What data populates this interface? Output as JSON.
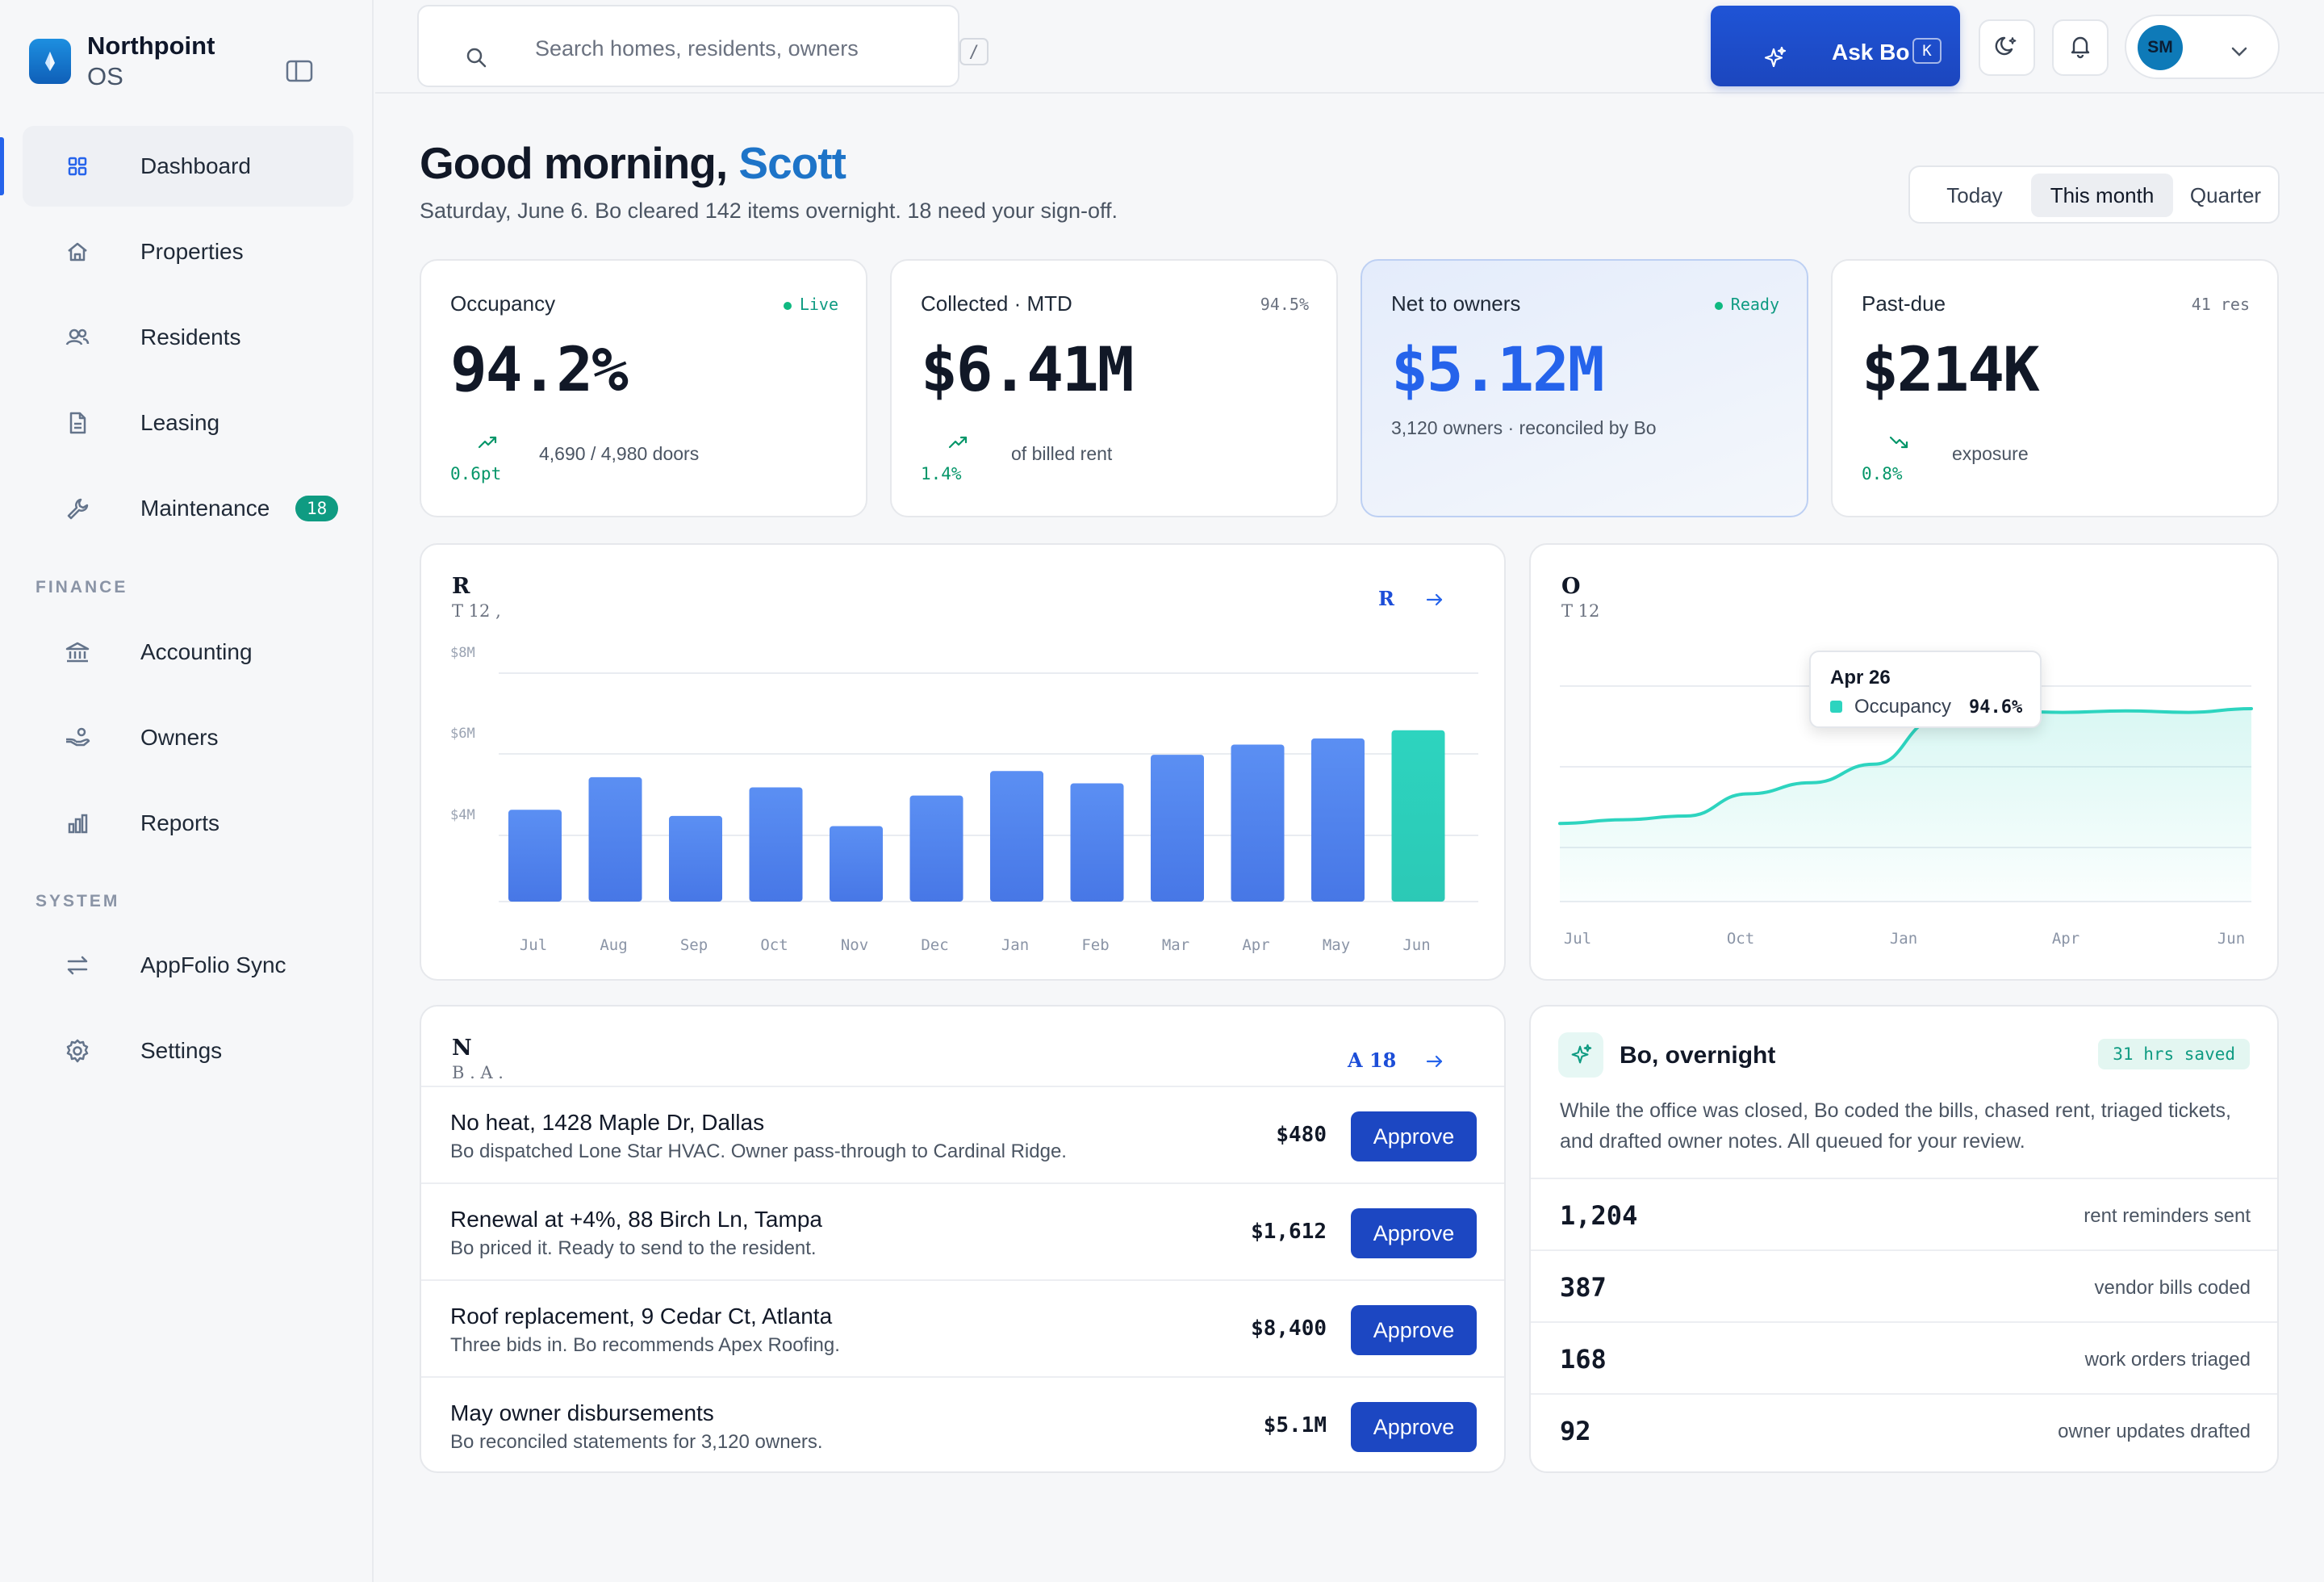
{
  "brand": {
    "name": "Northpoint",
    "sub": "OS"
  },
  "nav": {
    "items": [
      {
        "label": "Dashboard",
        "icon": "grid-icon",
        "active": true
      },
      {
        "label": "Properties",
        "icon": "home-icon"
      },
      {
        "label": "Residents",
        "icon": "users-icon"
      },
      {
        "label": "Leasing",
        "icon": "document-icon"
      },
      {
        "label": "Maintenance",
        "icon": "wrench-icon",
        "badge": "18"
      }
    ],
    "finance_label": "FINANCE",
    "finance": [
      {
        "label": "Accounting",
        "icon": "bank-icon"
      },
      {
        "label": "Owners",
        "icon": "hand-coins-icon"
      },
      {
        "label": "Reports",
        "icon": "bar-chart-icon"
      }
    ],
    "system_label": "SYSTEM",
    "system": [
      {
        "label": "AppFolio Sync",
        "icon": "sync-arrows-icon"
      },
      {
        "label": "Settings",
        "icon": "gear-icon"
      }
    ]
  },
  "topbar": {
    "search_placeholder": "Search homes, residents, owners",
    "search_kbd": "/",
    "ask_label": "Ask Bo",
    "ask_kbd": "K",
    "user_initials": "SM"
  },
  "greeting": {
    "prefix": "Good morning, ",
    "name": "Scott",
    "subtitle": "Saturday, June 6. Bo cleared 142 items overnight. 18 need your sign-off."
  },
  "range": {
    "options": [
      "Today",
      "This month",
      "Quarter"
    ],
    "selected": "This month"
  },
  "kpis": [
    {
      "title": "Occupancy",
      "value": "94.2%",
      "tag": "Live",
      "delta": "0.6pt",
      "sub": "4,690 / 4,980 doors",
      "trend": "up"
    },
    {
      "title": "Collected · MTD",
      "value": "$6.41M",
      "tag": "94.5%",
      "delta": "1.4%",
      "sub": "of billed rent",
      "trend": "up"
    },
    {
      "title": "Net to owners",
      "value": "$5.12M",
      "tag": "Ready",
      "note": "3,120 owners · reconciled by Bo"
    },
    {
      "title": "Past-due",
      "value": "$214K",
      "tag": "41 res",
      "delta": "0.8%",
      "sub": "exposure",
      "trend": "down"
    }
  ],
  "revenue_card": {
    "title": "R",
    "subtitle": "T  12  ,",
    "link": "R"
  },
  "occupancy_card": {
    "title": "O",
    "subtitle": "T  12"
  },
  "tooltip": {
    "title": "Apr 26",
    "label": "Occupancy",
    "value": "94.6%"
  },
  "approvals_card": {
    "title": "N",
    "subtitle": "B   . A      .",
    "link": "A  18"
  },
  "approvals": [
    {
      "title": "No heat, 1428 Maple Dr, Dallas",
      "desc": "Bo dispatched Lone Star HVAC. Owner pass-through to Cardinal Ridge.",
      "amount": "$480",
      "action": "Approve"
    },
    {
      "title": "Renewal at +4%, 88 Birch Ln, Tampa",
      "desc": "Bo priced it. Ready to send to the resident.",
      "amount": "$1,612",
      "action": "Approve"
    },
    {
      "title": "Roof replacement, 9 Cedar Ct, Atlanta",
      "desc": "Three bids in. Bo recommends Apex Roofing.",
      "amount": "$8,400",
      "action": "Approve"
    },
    {
      "title": "May owner disbursements",
      "desc": "Bo reconciled statements for 3,120 owners.",
      "amount": "$5.1M",
      "action": "Approve"
    }
  ],
  "overnight": {
    "title": "Bo, overnight",
    "badge": "31 hrs saved",
    "desc": "While the office was closed, Bo coded the bills, chased rent, triaged tickets, and drafted owner notes. All queued for your review.",
    "stats": [
      {
        "num": "1,204",
        "label": "rent reminders sent"
      },
      {
        "num": "387",
        "label": "vendor bills coded"
      },
      {
        "num": "168",
        "label": "work orders triaged"
      },
      {
        "num": "92",
        "label": "owner updates drafted"
      }
    ]
  },
  "colors": {
    "accent": "#1c47c2",
    "bar": "#4f82f0",
    "highlight": "#2dd4bf",
    "green": "#0f9b82"
  },
  "chart_data": [
    {
      "type": "bar",
      "categories": [
        "Jul",
        "Aug",
        "Sep",
        "Oct",
        "Nov",
        "Dec",
        "Jan",
        "Feb",
        "Mar",
        "Apr",
        "May",
        "Jun"
      ],
      "values": [
        4.65,
        5.45,
        4.5,
        5.2,
        4.25,
        5.0,
        5.6,
        5.3,
        6.0,
        6.25,
        6.4,
        6.6
      ],
      "highlight_index": 11,
      "yticks": [
        "$4M",
        "$6M",
        "$8M"
      ],
      "ylim": [
        0,
        8
      ],
      "grid": true
    },
    {
      "type": "area",
      "x": [
        "Jul",
        "Aug",
        "Sep",
        "Oct",
        "Nov",
        "Dec",
        "Jan",
        "Feb",
        "Mar",
        "Apr",
        "May",
        "Jun"
      ],
      "xticks": [
        "Jul",
        "Oct",
        "Jan",
        "Apr",
        "Jun"
      ],
      "values": [
        93.1,
        93.15,
        93.2,
        93.5,
        93.65,
        93.9,
        94.5,
        94.62,
        94.6,
        94.62,
        94.6,
        94.65
      ],
      "ylim": [
        91.5,
        95.5
      ],
      "grid": true
    }
  ]
}
